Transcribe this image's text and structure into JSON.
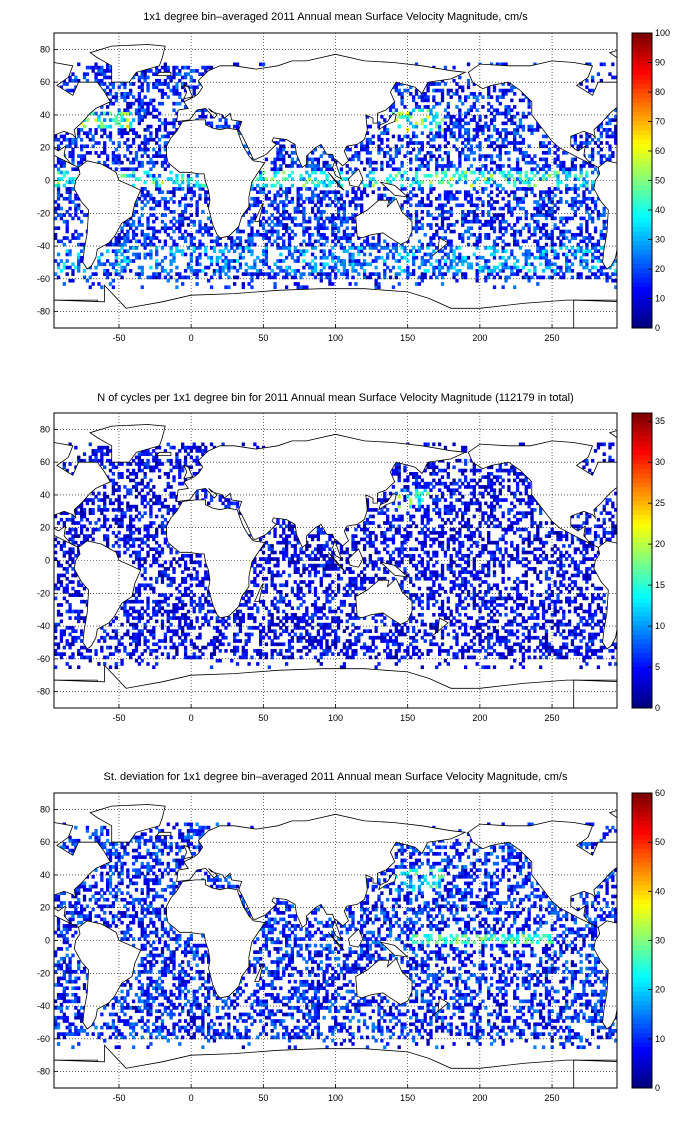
{
  "panels": [
    {
      "title": "1x1 degree bin–averaged 2011 Annual mean Surface Velocity Magnitude, cm/s",
      "colorbar": {
        "min": 0,
        "max": 100,
        "ticks": [
          "0",
          "10",
          "20",
          "30",
          "40",
          "50",
          "60",
          "70",
          "80",
          "90",
          "100"
        ]
      },
      "field": "mean-velocity"
    },
    {
      "title": "N of cycles per 1x1 degree bin for 2011 Annual mean Surface Velocity Magnitude (112179 in total)",
      "colorbar": {
        "min": 0,
        "max": 36,
        "ticks": [
          "0",
          "5",
          "10",
          "15",
          "20",
          "25",
          "30",
          "35"
        ]
      },
      "field": "cycle-count"
    },
    {
      "title": "St. deviation for 1x1 degree bin–averaged 2011 Annual mean Surface Velocity Magnitude, cm/s",
      "colorbar": {
        "min": 0,
        "max": 60,
        "ticks": [
          "0",
          "10",
          "20",
          "30",
          "40",
          "50",
          "60"
        ]
      },
      "field": "std-deviation"
    }
  ],
  "axes": {
    "x_ticks": [
      "-50",
      "0",
      "50",
      "100",
      "150",
      "200",
      "250"
    ],
    "y_ticks": [
      "80",
      "60",
      "40",
      "20",
      "0",
      "-20",
      "-40",
      "-60",
      "-80"
    ],
    "xlim": [
      -95,
      295
    ],
    "ylim": [
      -90,
      90
    ],
    "grid": "dotted"
  },
  "colors": {
    "land": "#ffffff",
    "coast": "#000000",
    "colormap": "jet"
  }
}
